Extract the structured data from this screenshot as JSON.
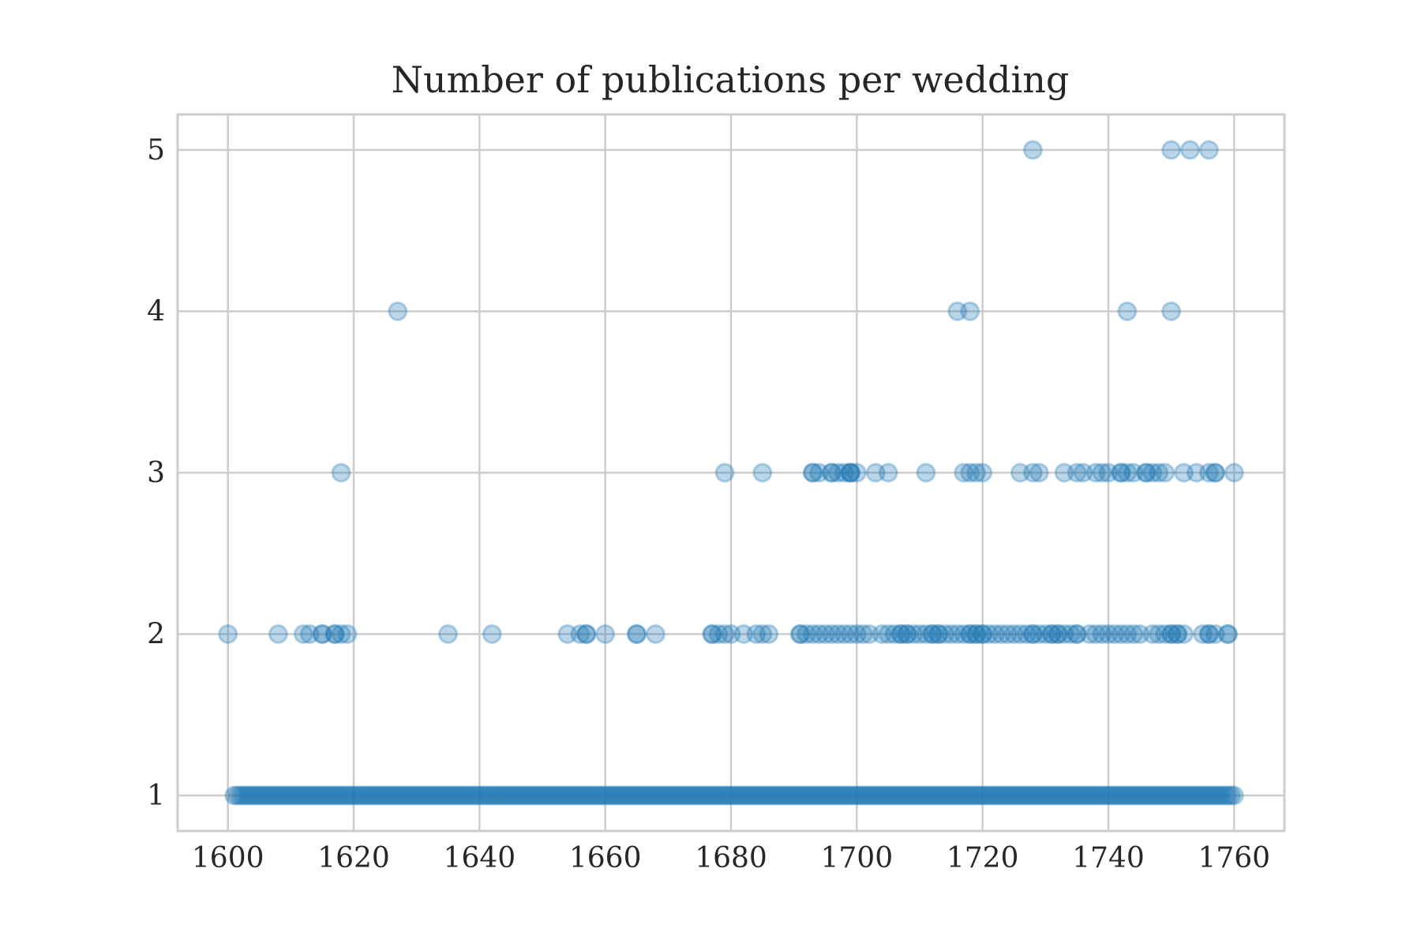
{
  "chart_data": {
    "type": "scatter",
    "title": "Number of publications per wedding",
    "xlabel": "",
    "ylabel": "",
    "xlim": [
      1592,
      1768
    ],
    "ylim": [
      0.78,
      5.22
    ],
    "xticks": [
      1600,
      1620,
      1640,
      1660,
      1680,
      1700,
      1720,
      1740,
      1760
    ],
    "yticks": [
      1,
      2,
      3,
      4,
      5
    ],
    "grid": true,
    "color": "#1f77b4",
    "alpha": 0.3,
    "points_y5_x": [
      1728,
      1750,
      1753,
      1756
    ],
    "points_y4_x": [
      1627,
      1716,
      1718,
      1743,
      1750
    ],
    "points_y3_x": [
      1618,
      1679,
      1685,
      1693,
      1693,
      1694,
      1696,
      1696,
      1697,
      1698,
      1699,
      1699,
      1699,
      1700,
      1703,
      1705,
      1711,
      1717,
      1718,
      1719,
      1720,
      1726,
      1728,
      1729,
      1733,
      1735,
      1736,
      1738,
      1739,
      1740,
      1742,
      1742,
      1743,
      1744,
      1746,
      1746,
      1747,
      1748,
      1749,
      1752,
      1754,
      1756,
      1757,
      1757,
      1760
    ],
    "points_y2_x": [
      1600,
      1608,
      1612,
      1613,
      1615,
      1615,
      1617,
      1617,
      1618,
      1619,
      1635,
      1642,
      1654,
      1656,
      1657,
      1657,
      1660,
      1665,
      1665,
      1668,
      1677,
      1677,
      1678,
      1679,
      1680,
      1682,
      1684,
      1685,
      1686,
      1691,
      1691,
      1692,
      1693,
      1694,
      1695,
      1696,
      1697,
      1698,
      1699,
      1700,
      1701,
      1702,
      1704,
      1705,
      1706,
      1707,
      1707,
      1708,
      1708,
      1709,
      1710,
      1711,
      1712,
      1712,
      1713,
      1713,
      1714,
      1715,
      1716,
      1717,
      1718,
      1718,
      1719,
      1719,
      1720,
      1720,
      1721,
      1722,
      1723,
      1724,
      1725,
      1726,
      1727,
      1728,
      1728,
      1729,
      1730,
      1731,
      1731,
      1732,
      1732,
      1733,
      1734,
      1735,
      1735,
      1737,
      1738,
      1739,
      1740,
      1741,
      1742,
      1743,
      1744,
      1745,
      1747,
      1748,
      1749,
      1750,
      1750,
      1751,
      1751,
      1752,
      1755,
      1756,
      1756,
      1757,
      1759,
      1759
    ],
    "points_y1_x_range": [
      1601,
      1760
    ],
    "points_y1_step": 0.5
  }
}
